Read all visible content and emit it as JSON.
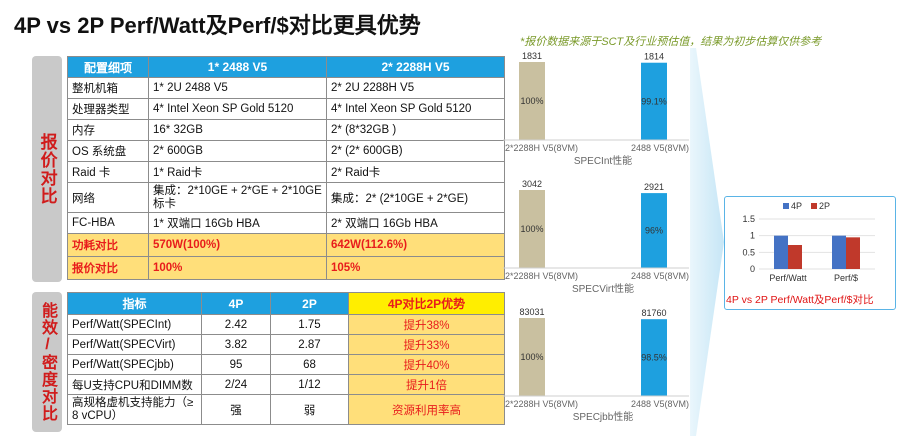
{
  "title": "4P vs 2P Perf/Watt及Perf/$对比更具优势",
  "note": "*报价数据来源于SCT及行业预估值，结果为初步估算仅供参考",
  "side_labels": {
    "top": "报价对比",
    "bottom": "能效/密度对比"
  },
  "config_table": {
    "headers": [
      "配置细项",
      "1* 2488 V5",
      "2* 2288H V5"
    ],
    "rows": [
      [
        "整机机箱",
        "1* 2U 2488 V5",
        "2* 2U 2288H V5"
      ],
      [
        "处理器类型",
        "4* Intel Xeon SP Gold 5120",
        "4* Intel Xeon SP Gold 5120"
      ],
      [
        "内存",
        "16* 32GB",
        "2* (8*32GB )"
      ],
      [
        "OS 系统盘",
        "2* 600GB",
        "2* (2* 600GB)"
      ],
      [
        "Raid 卡",
        "1* Raid卡",
        "2* Raid卡"
      ],
      [
        "网络",
        "集成：2*10GE + 2*GE + 2*10GE标卡",
        "集成：2* (2*10GE + 2*GE)"
      ],
      [
        "FC-HBA",
        "1* 双端口 16Gb HBA",
        "2* 双端口 16Gb HBA"
      ]
    ],
    "highlight_rows": [
      [
        "功耗对比",
        "570W(100%)",
        "642W(112.6%)"
      ],
      [
        "报价对比",
        "100%",
        "105%"
      ]
    ]
  },
  "perf_table": {
    "headers": [
      "指标",
      "4P",
      "2P",
      "4P对比2P优势"
    ],
    "rows": [
      [
        "Perf/Watt(SPECInt)",
        "2.42",
        "1.75",
        "提升38%"
      ],
      [
        "Perf/Watt(SPECVirt)",
        "3.82",
        "2.87",
        "提升33%"
      ],
      [
        "Perf/Watt(SPECjbb)",
        "95",
        "68",
        "提升40%"
      ],
      [
        "每U支持CPU和DIMM数",
        "2/24",
        "1/12",
        "提升1倍"
      ],
      [
        "高规格虚机支持能力（≥ 8 vCPU）",
        "强",
        "弱",
        "资源利用率高"
      ]
    ]
  },
  "colors": {
    "bar_2p": "#c9c0a0",
    "bar_4p": "#1ea0df",
    "mini_4p": "#4472c4",
    "mini_2p": "#c0392b",
    "accent_red": "#e01414"
  },
  "chart_data": [
    {
      "type": "bar",
      "title": "SPECInt性能",
      "categories": [
        "2*2288H V5(8VM)",
        "2488 V5(8VM)"
      ],
      "values": [
        1831,
        1814
      ],
      "value_labels": [
        "1831",
        "1814"
      ],
      "inner_labels": [
        "100%",
        "99.1%"
      ]
    },
    {
      "type": "bar",
      "title": "SPECVirt性能",
      "categories": [
        "2*2288H V5(8VM)",
        "2488 V5(8VM)"
      ],
      "values": [
        3042,
        2921
      ],
      "value_labels": [
        "3042",
        "2921"
      ],
      "inner_labels": [
        "100%",
        "96%"
      ]
    },
    {
      "type": "bar",
      "title": "SPECjbb性能",
      "categories": [
        "2*2288H V5(8VM)",
        "2488 V5(8VM)"
      ],
      "values": [
        83031,
        81760
      ],
      "value_labels": [
        "83031",
        "81760"
      ],
      "inner_labels": [
        "100%",
        "98.5%"
      ]
    },
    {
      "type": "bar",
      "title": "4P vs 2P Perf/Watt及Perf/$对比",
      "categories": [
        "Perf/Watt",
        "Perf/$"
      ],
      "series": [
        {
          "name": "4P",
          "values": [
            1.0,
            1.0
          ]
        },
        {
          "name": "2P",
          "values": [
            0.72,
            0.95
          ]
        }
      ],
      "yticks": [
        "0",
        "0.5",
        "1",
        "1.5"
      ],
      "ylim": [
        0,
        1.5
      ],
      "legend": "top"
    }
  ]
}
